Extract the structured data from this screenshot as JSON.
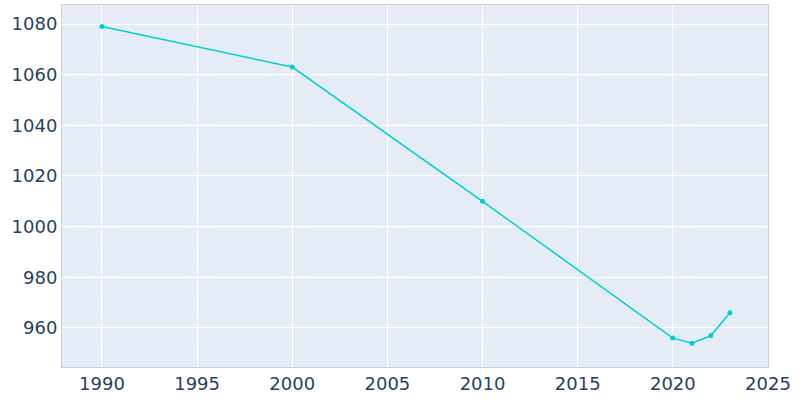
{
  "chart_data": {
    "type": "line",
    "x": [
      1990,
      2000,
      2010,
      2020,
      2021,
      2022,
      2023
    ],
    "values": [
      1079,
      1063,
      1010,
      956,
      954,
      957,
      966
    ],
    "color": "#00ced1",
    "marker": "circle",
    "xlim": [
      1987.9,
      2025
    ],
    "xticks": [
      1990,
      1995,
      2000,
      2005,
      2010,
      2015,
      2020,
      2025
    ],
    "ylim": [
      944.6,
      1087.5
    ],
    "yticks": [
      960,
      980,
      1000,
      1020,
      1040,
      1060,
      1080
    ],
    "grid": true
  }
}
